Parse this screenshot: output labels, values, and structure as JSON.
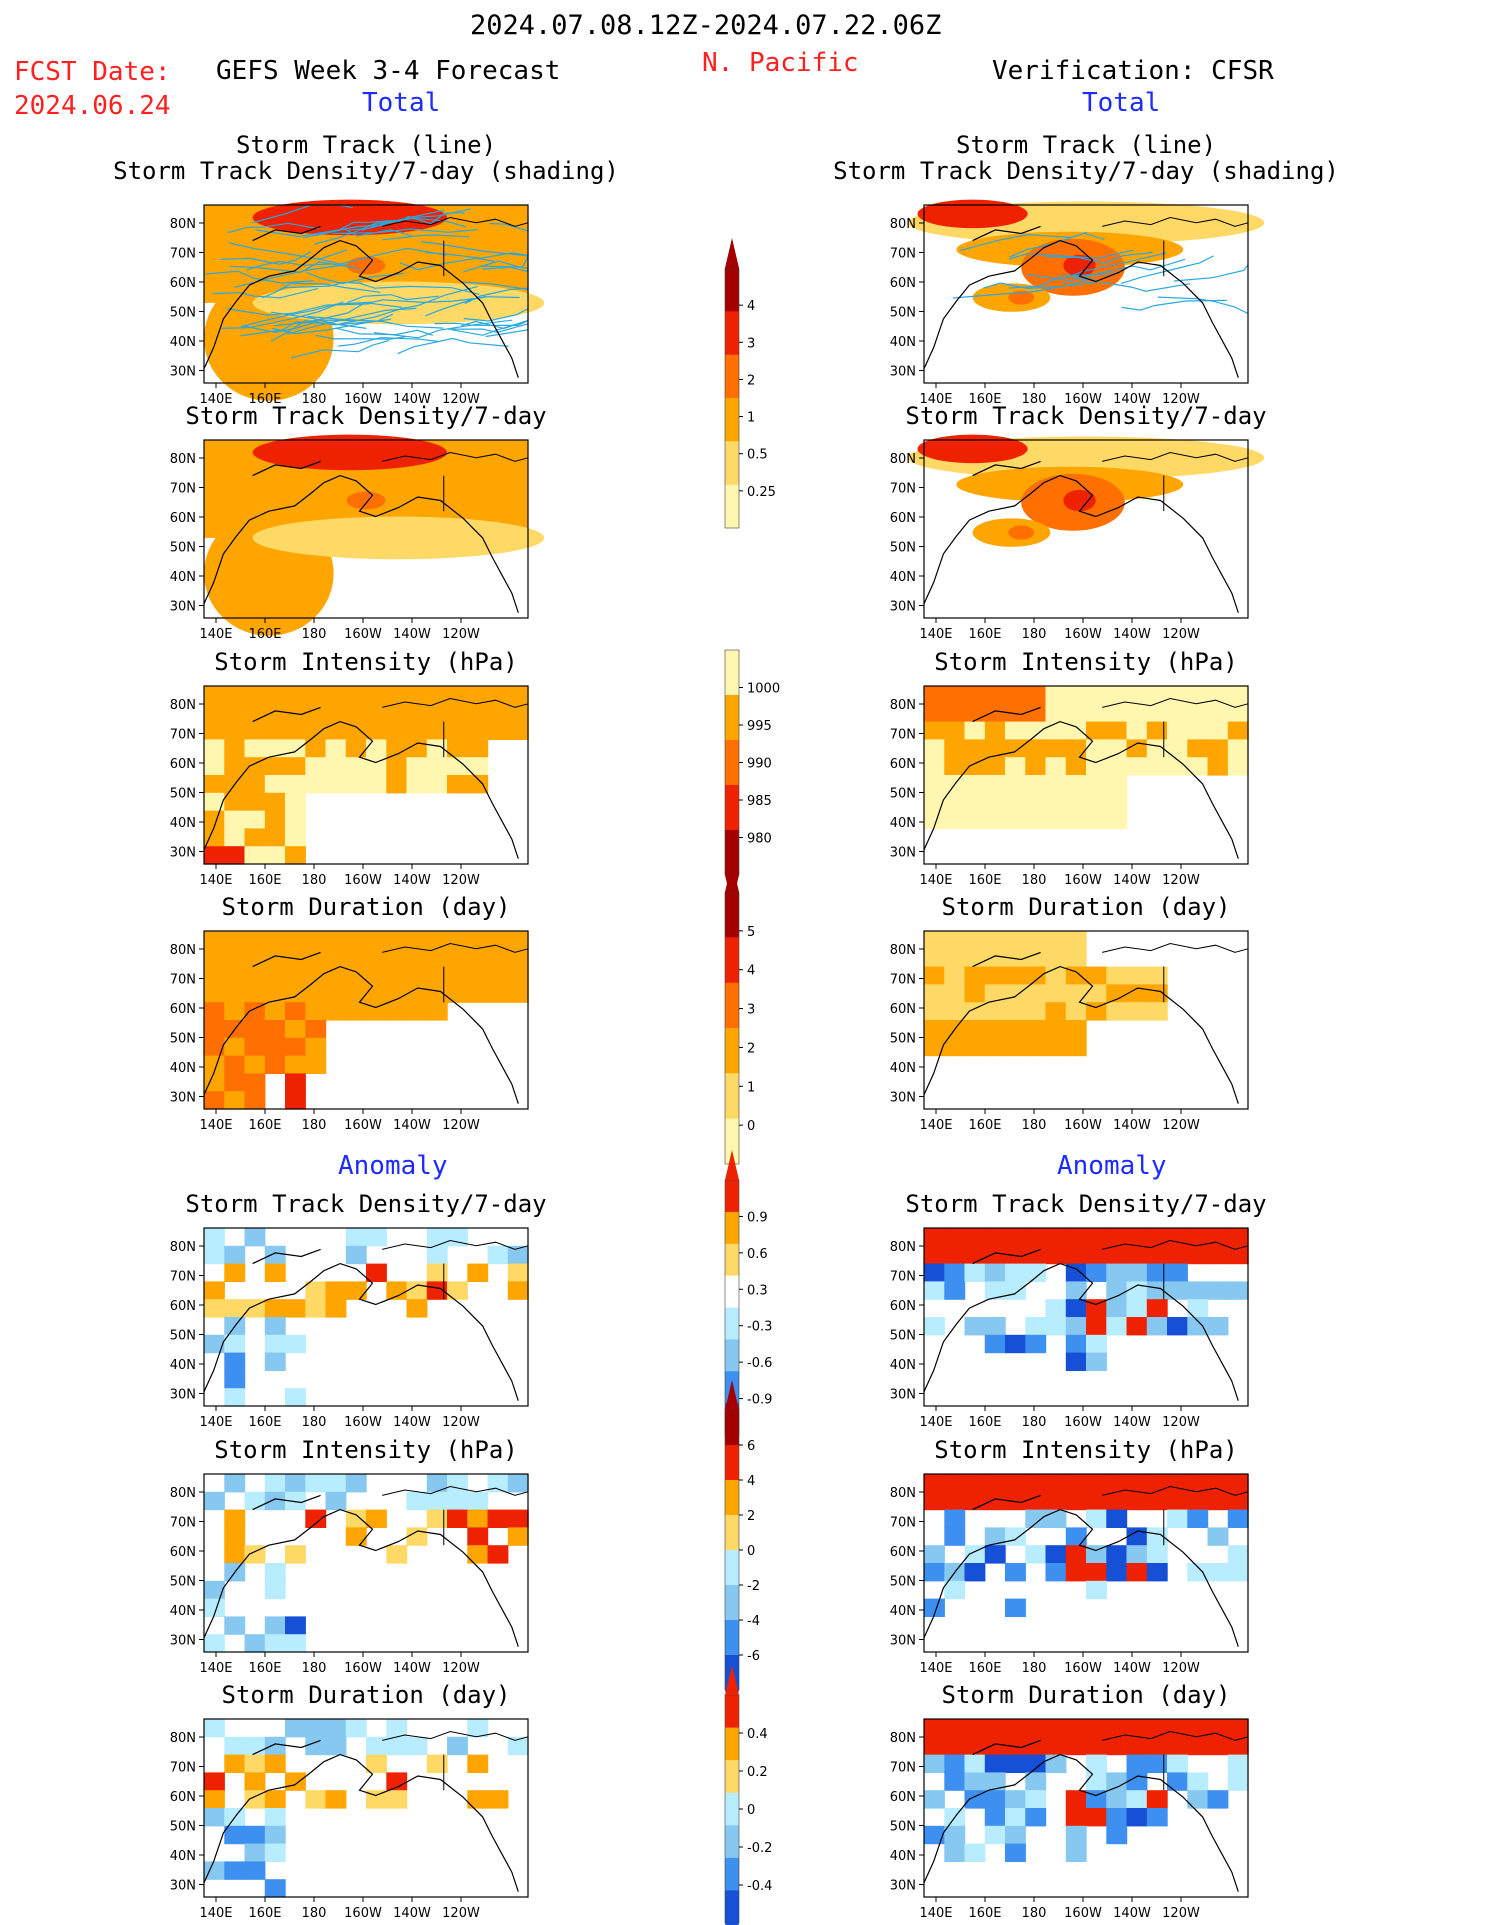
{
  "header": {
    "date_range": "2024.07.08.12Z-2024.07.22.06Z",
    "fcst_label": "FCST Date:",
    "fcst_date": "2024.06.24",
    "forecast_title": "GEFS Week 3-4 Forecast",
    "region": "N. Pacific",
    "verification_title": "Verification: CFSR",
    "left_total": "Total",
    "right_total": "Total",
    "left_anomaly": "Anomaly",
    "right_anomaly": "Anomaly"
  },
  "axes": {
    "lat_labels": [
      "80N",
      "70N",
      "60N",
      "50N",
      "40N",
      "30N"
    ],
    "lon_labels": [
      "140E",
      "160E",
      "180",
      "160W",
      "140W",
      "120W"
    ]
  },
  "colors": {
    "pale": "#fff7b0",
    "yellow": "#ffd966",
    "orange": "#ffa500",
    "dorange": "#ff7000",
    "red": "#ee2200",
    "dred": "#a40000",
    "lblue": "#b8ecff",
    "blue2": "#86c8f0",
    "blue3": "#3d8ff0",
    "blue4": "#1550d6",
    "track": "#29a8e0"
  },
  "panels": [
    {
      "id": "fc-track",
      "col": "left",
      "title1": "Storm Track (line)",
      "title2": "Storm Track Density/7-day (shading)",
      "kind": "track"
    },
    {
      "id": "vf-track",
      "col": "right",
      "title1": "Storm Track (line)",
      "title2": "Storm Track Density/7-day (shading)",
      "kind": "track"
    },
    {
      "id": "fc-density",
      "col": "left",
      "title1": "Storm Track Density/7-day",
      "kind": "density"
    },
    {
      "id": "vf-density",
      "col": "right",
      "title1": "Storm Track Density/7-day",
      "kind": "density"
    },
    {
      "id": "fc-intensity",
      "col": "left",
      "title1": "Storm Intensity (hPa)",
      "kind": "intensity"
    },
    {
      "id": "vf-intensity",
      "col": "right",
      "title1": "Storm Intensity (hPa)",
      "kind": "intensity"
    },
    {
      "id": "fc-duration",
      "col": "left",
      "title1": "Storm Duration (day)",
      "kind": "duration"
    },
    {
      "id": "vf-duration",
      "col": "right",
      "title1": "Storm Duration (day)",
      "kind": "duration"
    },
    {
      "id": "fc-anom-density",
      "col": "left",
      "title1": "Storm Track Density/7-day",
      "kind": "anom"
    },
    {
      "id": "vf-anom-density",
      "col": "right",
      "title1": "Storm Track Density/7-day",
      "kind": "anom"
    },
    {
      "id": "fc-anom-intensity",
      "col": "left",
      "title1": "Storm Intensity (hPa)",
      "kind": "anom"
    },
    {
      "id": "vf-anom-intensity",
      "col": "right",
      "title1": "Storm Intensity (hPa)",
      "kind": "anom"
    },
    {
      "id": "fc-anom-duration",
      "col": "left",
      "title1": "Storm Duration (day)",
      "kind": "anom"
    },
    {
      "id": "vf-anom-duration",
      "col": "right",
      "title1": "Storm Duration (day)",
      "kind": "anom"
    }
  ],
  "colorbars": [
    {
      "id": "cb-density",
      "labels": [
        "4",
        "3",
        "2",
        "1",
        "0.5",
        "0.25"
      ],
      "colors": [
        "#a40000",
        "#ee2200",
        "#ff7000",
        "#ffa500",
        "#ffd966",
        "#fff7b0"
      ],
      "arrows": "top"
    },
    {
      "id": "cb-intensity",
      "labels": [
        "1000",
        "995",
        "990",
        "985",
        "980"
      ],
      "colors": [
        "#fff7b0",
        "#ffa500",
        "#ff7000",
        "#ee2200",
        "#a40000"
      ],
      "arrows": "bottom"
    },
    {
      "id": "cb-duration",
      "labels": [
        "5",
        "4",
        "3",
        "2",
        "1",
        "0"
      ],
      "colors": [
        "#a40000",
        "#ee2200",
        "#ff7000",
        "#ffa500",
        "#ffd966",
        "#fff7b0"
      ],
      "arrows": "top"
    },
    {
      "id": "cb-anom-density",
      "labels": [
        "0.9",
        "0.6",
        "0.3",
        "-0.3",
        "-0.6",
        "-0.9"
      ],
      "colors": [
        "#ee2200",
        "#ffa500",
        "#ffd966",
        "#ffffff",
        "#b8ecff",
        "#86c8f0",
        "#3d8ff0",
        "#1550d6"
      ],
      "arrows": "both"
    },
    {
      "id": "cb-anom-intensity",
      "labels": [
        "6",
        "4",
        "2",
        "0",
        "-2",
        "-4",
        "-6"
      ],
      "colors": [
        "#a40000",
        "#ee2200",
        "#ffa500",
        "#ffd966",
        "#b8ecff",
        "#86c8f0",
        "#3d8ff0",
        "#1550d6"
      ],
      "arrows": "both"
    },
    {
      "id": "cb-anom-duration",
      "labels": [
        "0.4",
        "0.2",
        "0",
        "-0.2",
        "-0.4"
      ],
      "colors": [
        "#ee2200",
        "#ffa500",
        "#ffd966",
        "#b8ecff",
        "#86c8f0",
        "#3d8ff0",
        "#1550d6"
      ],
      "arrows": "both"
    }
  ]
}
